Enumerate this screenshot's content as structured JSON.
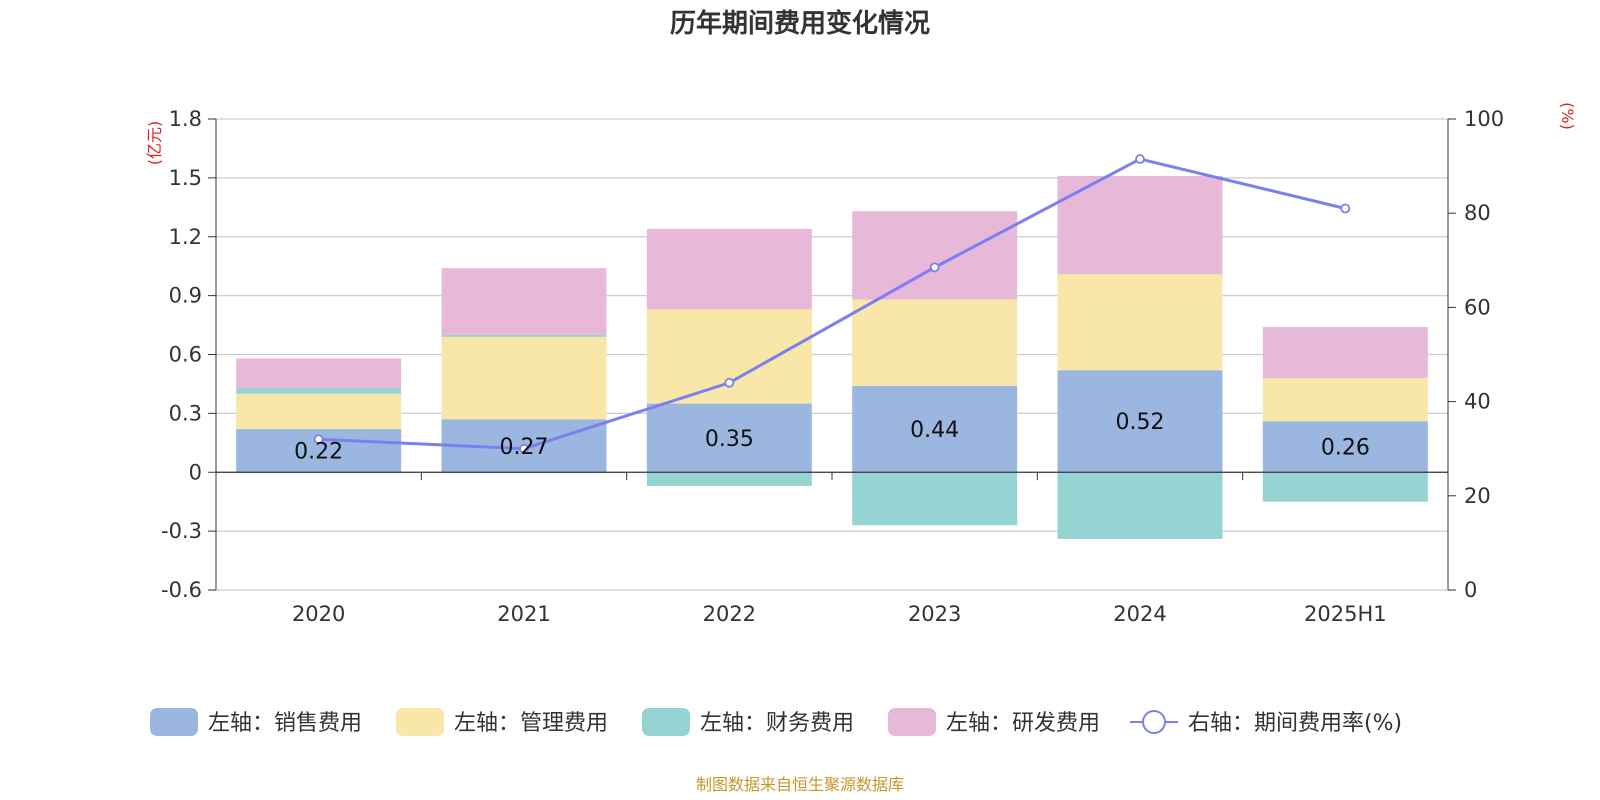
{
  "chart_data": {
    "type": "bar",
    "title": "历年期间费用变化情况",
    "left_unit": "(亿元)",
    "right_unit": "(%)",
    "categories": [
      "2020",
      "2021",
      "2022",
      "2023",
      "2024",
      "2025H1"
    ],
    "ylim_left": [
      -0.6,
      1.8
    ],
    "yticks_left": [
      "1.8",
      "1.5",
      "1.2",
      "0.9",
      "0.6",
      "0.3",
      "0",
      "-0.3",
      "-0.6"
    ],
    "ylim_right": [
      0,
      100
    ],
    "yticks_right": [
      "100",
      "80",
      "60",
      "40",
      "20",
      "0"
    ],
    "series": [
      {
        "name": "左轴：销售费用",
        "axis": "left",
        "kind": "bar",
        "color": "#9bb7e0",
        "values": [
          0.22,
          0.27,
          0.35,
          0.44,
          0.52,
          0.26
        ],
        "labels": [
          "0.22",
          "0.27",
          "0.35",
          "0.44",
          "0.52",
          "0.26"
        ]
      },
      {
        "name": "左轴：管理费用",
        "axis": "left",
        "kind": "bar",
        "color": "#f8e7a8",
        "values": [
          0.18,
          0.42,
          0.48,
          0.44,
          0.49,
          0.22
        ]
      },
      {
        "name": "左轴：财务费用",
        "axis": "left",
        "kind": "bar",
        "color": "#96d4d4",
        "values": [
          0.03,
          0.01,
          -0.07,
          -0.27,
          -0.34,
          -0.15
        ]
      },
      {
        "name": "左轴：研发费用",
        "axis": "left",
        "kind": "bar",
        "color": "#e8b8d9",
        "values": [
          0.15,
          0.34,
          0.41,
          0.45,
          0.5,
          0.26
        ]
      },
      {
        "name": "右轴：期间费用率(%)",
        "axis": "right",
        "kind": "line",
        "color": "#7b7ff0",
        "values": [
          32.0,
          30.0,
          44.0,
          68.5,
          91.5,
          81.0
        ]
      }
    ],
    "grid": true,
    "legend_position": "bottom"
  },
  "source_note": "制图数据来自恒生聚源数据库"
}
